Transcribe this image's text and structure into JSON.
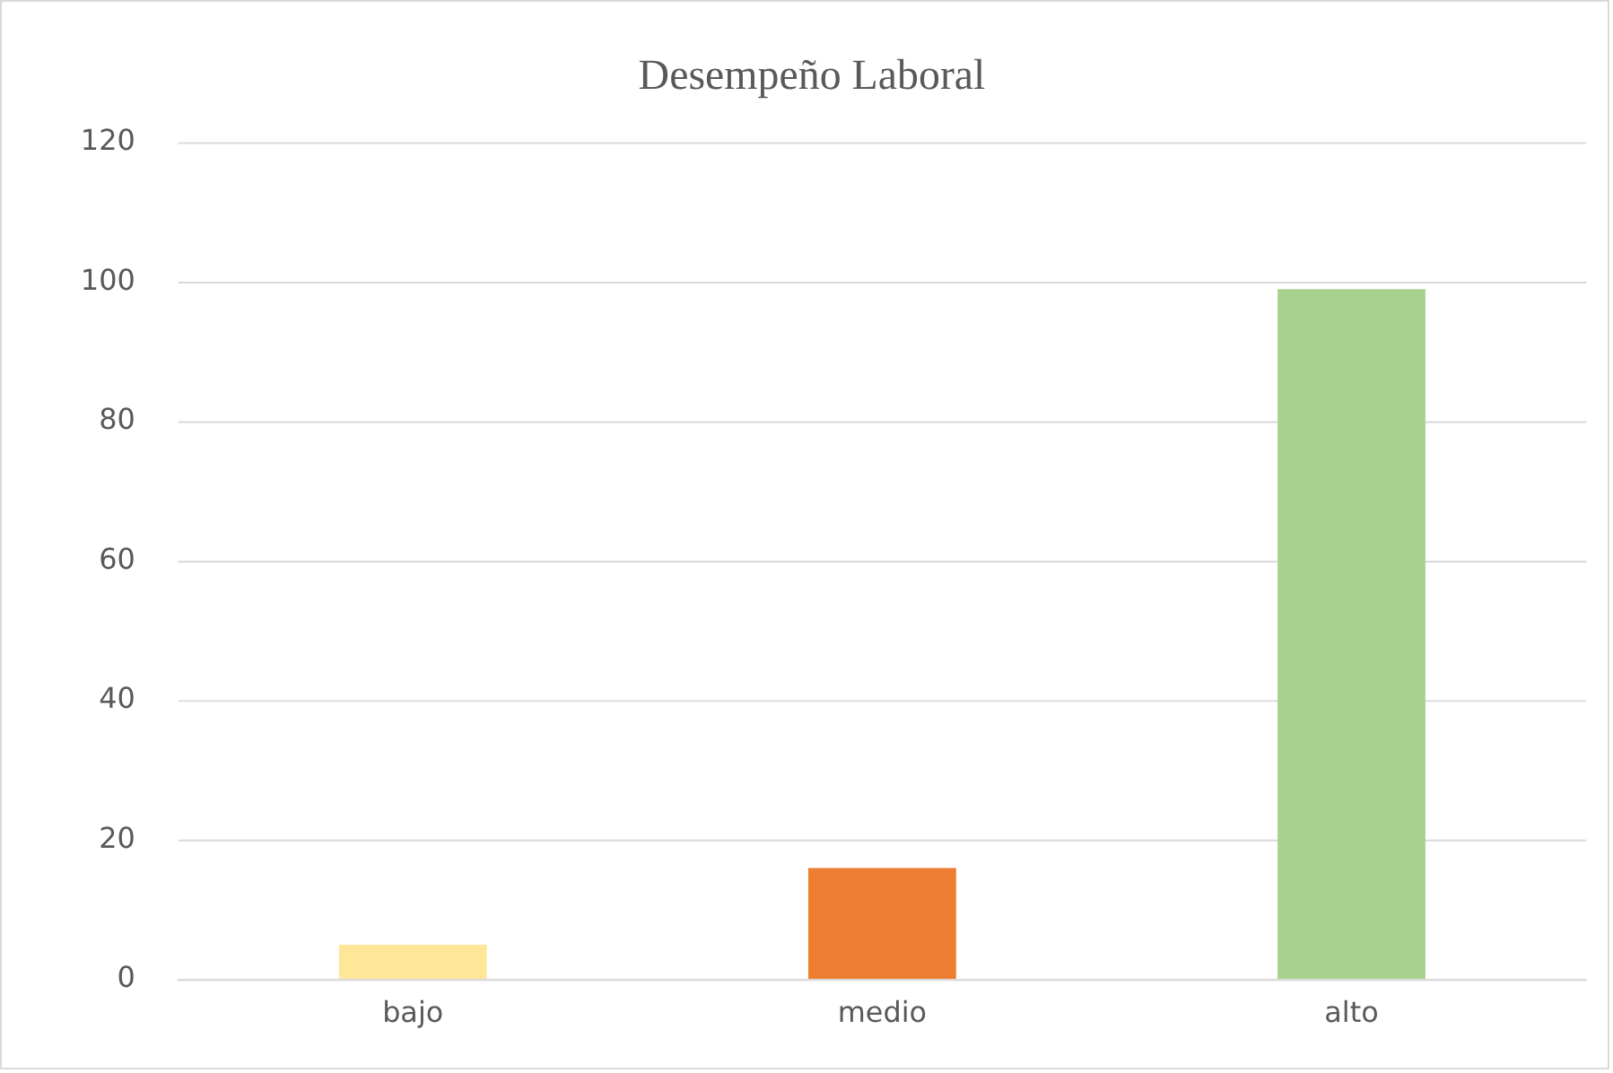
{
  "chart_data": {
    "type": "bar",
    "title": "Desempeño Laboral",
    "categories": [
      "bajo",
      "medio",
      "alto"
    ],
    "values": [
      5,
      16,
      99
    ],
    "colors": [
      "#ffe699",
      "#ed7d31",
      "#a9d18e"
    ],
    "ylim": [
      0,
      120
    ],
    "yticks": [
      0,
      20,
      40,
      60,
      80,
      100,
      120
    ],
    "grid": "y",
    "legend": false
  }
}
